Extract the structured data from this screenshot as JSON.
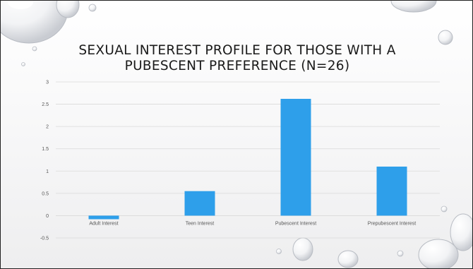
{
  "slide": {
    "title": "SEXUAL INTEREST PROFILE FOR THOSE WITH A\nPUBESCENT PREFERENCE (N=26)"
  },
  "chart_data": {
    "type": "bar",
    "title": "SEXUAL INTEREST PROFILE FOR THOSE WITH A PUBESCENT PREFERENCE (N=26)",
    "categories": [
      "Adult Interest",
      "Teen Interest",
      "Pubescent Interest",
      "Prepubescent Interest"
    ],
    "values": [
      -0.08,
      0.55,
      2.62,
      1.1
    ],
    "ylim": [
      -0.5,
      3
    ],
    "yticks": [
      "3",
      "2.5",
      "2",
      "1.5",
      "1",
      "0.5",
      "0",
      "-0.5"
    ],
    "xlabel": "",
    "ylabel": "",
    "grid": true,
    "legend": "none",
    "bar_color": "#2e9fea",
    "grid_color": "#d9d9d9"
  }
}
